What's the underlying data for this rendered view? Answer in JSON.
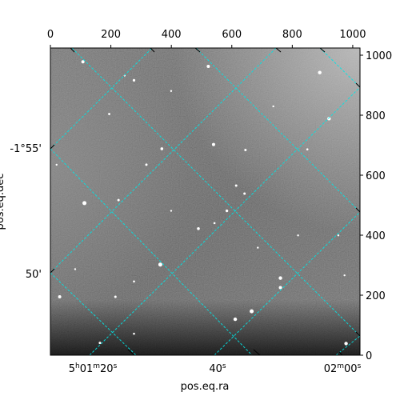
{
  "chart_data": {
    "type": "image",
    "xlabel": "pos.eq.ra",
    "ylabel": "pos.eq.dec",
    "pixel_xlim": [
      0,
      1024
    ],
    "pixel_ylim": [
      0,
      1024
    ],
    "top_ticks": [
      0,
      200,
      400,
      600,
      800,
      1000
    ],
    "right_ticks": [
      0,
      200,
      400,
      600,
      800,
      1000
    ],
    "ra_labels": [
      {
        "h": "5",
        "m": "01",
        "s": "20",
        "text_parts": [
          "5",
          "h",
          "01",
          "m",
          "20",
          "s"
        ]
      },
      {
        "text_parts": [
          "40",
          "s"
        ]
      },
      {
        "text_parts": [
          "02",
          "m",
          "00",
          "s"
        ]
      }
    ],
    "dec_labels": [
      "-1°55'",
      "50'"
    ],
    "grid_color": "#00e5e5",
    "grid_style": "dashed",
    "colormap": "gray",
    "stars": [
      {
        "x": 0.11,
        "y": 0.505,
        "r": 2.5
      },
      {
        "x": 0.355,
        "y": 0.705,
        "r": 2.5
      },
      {
        "x": 0.478,
        "y": 0.588,
        "r": 1.8
      },
      {
        "x": 0.597,
        "y": 0.883,
        "r": 2.2
      },
      {
        "x": 0.65,
        "y": 0.857,
        "r": 2.5
      },
      {
        "x": 0.743,
        "y": 0.749,
        "r": 2.2
      },
      {
        "x": 0.743,
        "y": 0.78,
        "r": 2.0
      },
      {
        "x": 0.22,
        "y": 0.495,
        "r": 1.5
      },
      {
        "x": 0.57,
        "y": 0.53,
        "r": 1.7
      },
      {
        "x": 0.36,
        "y": 0.328,
        "r": 1.8
      },
      {
        "x": 0.527,
        "y": 0.314,
        "r": 2.0
      },
      {
        "x": 0.63,
        "y": 0.332,
        "r": 1.5
      },
      {
        "x": 0.9,
        "y": 0.23,
        "r": 2.2
      },
      {
        "x": 0.87,
        "y": 0.08,
        "r": 2.2
      },
      {
        "x": 0.51,
        "y": 0.06,
        "r": 2.0
      },
      {
        "x": 0.27,
        "y": 0.105,
        "r": 1.6
      },
      {
        "x": 0.24,
        "y": 0.09,
        "r": 1.2
      },
      {
        "x": 0.105,
        "y": 0.045,
        "r": 2.0
      },
      {
        "x": 0.03,
        "y": 0.81,
        "r": 2.0
      },
      {
        "x": 0.21,
        "y": 0.81,
        "r": 1.5
      },
      {
        "x": 0.955,
        "y": 0.962,
        "r": 2.2
      },
      {
        "x": 0.6,
        "y": 0.448,
        "r": 1.5
      },
      {
        "x": 0.627,
        "y": 0.474,
        "r": 1.5
      },
      {
        "x": 0.31,
        "y": 0.38,
        "r": 1.5
      },
      {
        "x": 0.39,
        "y": 0.53,
        "r": 1.2
      },
      {
        "x": 0.53,
        "y": 0.57,
        "r": 1.3
      },
      {
        "x": 0.67,
        "y": 0.65,
        "r": 1.2
      },
      {
        "x": 0.8,
        "y": 0.61,
        "r": 1.2
      },
      {
        "x": 0.83,
        "y": 0.33,
        "r": 1.3
      },
      {
        "x": 0.93,
        "y": 0.61,
        "r": 1.2
      },
      {
        "x": 0.95,
        "y": 0.74,
        "r": 1.2
      },
      {
        "x": 0.19,
        "y": 0.215,
        "r": 1.4
      },
      {
        "x": 0.27,
        "y": 0.76,
        "r": 1.3
      },
      {
        "x": 0.39,
        "y": 0.14,
        "r": 1.2
      },
      {
        "x": 0.72,
        "y": 0.19,
        "r": 1.2
      },
      {
        "x": 0.02,
        "y": 0.38,
        "r": 1.2
      },
      {
        "x": 0.16,
        "y": 0.96,
        "r": 1.5
      },
      {
        "x": 0.27,
        "y": 0.93,
        "r": 1.3
      },
      {
        "x": 0.08,
        "y": 0.72,
        "r": 1.2
      }
    ]
  }
}
